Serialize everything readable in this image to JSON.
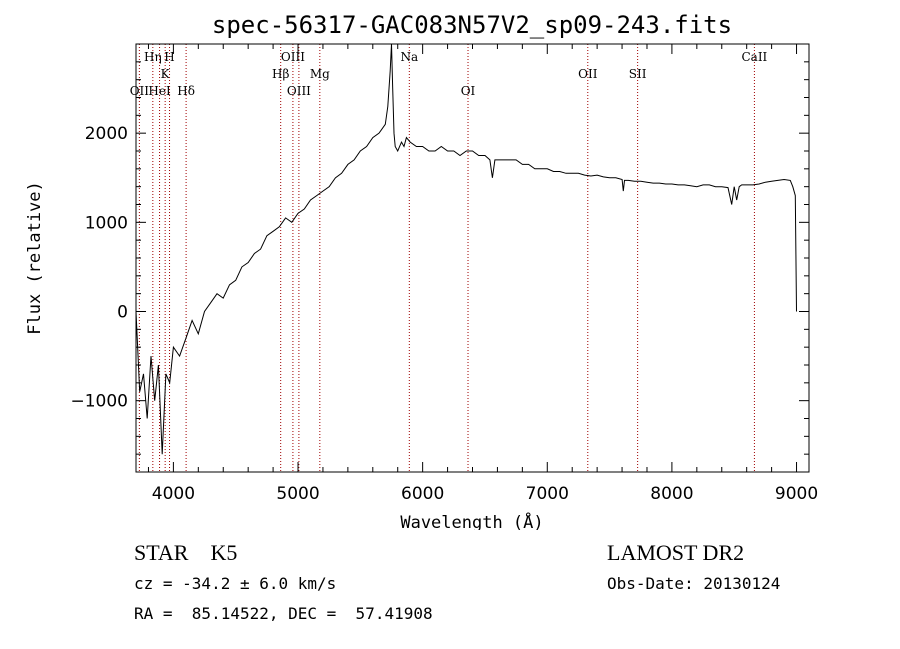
{
  "chart_data": {
    "type": "line",
    "title": "spec-56317-GAC083N57V2_sp09-243.fits",
    "xlabel": "Wavelength (Å)",
    "ylabel": "Flux (relative)",
    "xlim": [
      3700,
      9100
    ],
    "ylim": [
      -1800,
      3000
    ],
    "xticks": [
      4000,
      5000,
      6000,
      7000,
      8000,
      9000
    ],
    "yticks": [
      -1000,
      0,
      1000,
      2000
    ],
    "grid": false,
    "series": [
      {
        "x": [
          3700,
          3730,
          3760,
          3790,
          3820,
          3850,
          3880,
          3910,
          3940,
          3970,
          4000,
          4050,
          4100,
          4150,
          4200,
          4250,
          4300,
          4350,
          4400,
          4450,
          4500,
          4550,
          4600,
          4650,
          4700,
          4750,
          4800,
          4850,
          4900,
          4950,
          5000,
          5050,
          5100,
          5150,
          5200,
          5250,
          5300,
          5350,
          5400,
          5450,
          5500,
          5550,
          5600,
          5650,
          5700,
          5720,
          5740,
          5750,
          5760,
          5770,
          5780,
          5800,
          5830,
          5850,
          5870,
          5900,
          5950,
          6000,
          6050,
          6100,
          6150,
          6200,
          6250,
          6300,
          6350,
          6400,
          6450,
          6500,
          6540,
          6560,
          6580,
          6600,
          6650,
          6700,
          6750,
          6800,
          6850,
          6900,
          6950,
          7000,
          7050,
          7100,
          7150,
          7200,
          7250,
          7300,
          7350,
          7400,
          7450,
          7500,
          7550,
          7600,
          7610,
          7620,
          7650,
          7700,
          7750,
          7800,
          7850,
          7900,
          7950,
          8000,
          8050,
          8100,
          8150,
          8200,
          8250,
          8300,
          8350,
          8400,
          8450,
          8480,
          8500,
          8520,
          8540,
          8560,
          8600,
          8650,
          8700,
          8750,
          8800,
          8850,
          8900,
          8950,
          8970,
          8990,
          9000
        ],
        "y": [
          0,
          -900,
          -700,
          -1200,
          -500,
          -1000,
          -600,
          -1600,
          -700,
          -800,
          -400,
          -500,
          -300,
          -100,
          -250,
          0,
          100,
          200,
          150,
          300,
          350,
          500,
          550,
          650,
          700,
          850,
          900,
          950,
          1050,
          1000,
          1100,
          1150,
          1250,
          1300,
          1350,
          1400,
          1500,
          1550,
          1650,
          1700,
          1800,
          1850,
          1950,
          2000,
          2100,
          2300,
          2700,
          3000,
          2500,
          2000,
          1850,
          1800,
          1900,
          1850,
          1950,
          1900,
          1850,
          1850,
          1800,
          1800,
          1850,
          1800,
          1800,
          1750,
          1800,
          1800,
          1750,
          1750,
          1700,
          1500,
          1700,
          1700,
          1700,
          1700,
          1700,
          1650,
          1650,
          1600,
          1600,
          1600,
          1570,
          1570,
          1550,
          1550,
          1550,
          1530,
          1520,
          1530,
          1510,
          1500,
          1500,
          1480,
          1350,
          1470,
          1470,
          1460,
          1460,
          1450,
          1440,
          1440,
          1430,
          1430,
          1420,
          1420,
          1410,
          1400,
          1420,
          1420,
          1400,
          1400,
          1390,
          1200,
          1400,
          1250,
          1400,
          1420,
          1420,
          1420,
          1430,
          1450,
          1460,
          1470,
          1480,
          1470,
          1400,
          1300,
          0
        ]
      }
    ],
    "lines": [
      {
        "label": "OII",
        "x": 3727,
        "row": 3
      },
      {
        "label": "Hη",
        "x": 3835,
        "row": 1
      },
      {
        "label": "HeI",
        "x": 3889,
        "row": 3
      },
      {
        "label": "K",
        "x": 3934,
        "row": 2
      },
      {
        "label": "H",
        "x": 3969,
        "row": 1
      },
      {
        "label": "Hδ",
        "x": 4102,
        "row": 3
      },
      {
        "label": "Hβ",
        "x": 4861,
        "row": 2
      },
      {
        "label": "OIII",
        "x": 4959,
        "row": 1
      },
      {
        "label": "OIII",
        "x": 5007,
        "row": 3
      },
      {
        "label": "Mg",
        "x": 5175,
        "row": 2
      },
      {
        "label": "Na",
        "x": 5893,
        "row": 1
      },
      {
        "label": "OI",
        "x": 6364,
        "row": 3
      },
      {
        "label": "OII",
        "x": 7325,
        "row": 2
      },
      {
        "label": "SII",
        "x": 7725,
        "row": 2
      },
      {
        "label": "CaII",
        "x": 8662,
        "row": 1
      }
    ]
  },
  "info": {
    "object": "STAR    K5",
    "survey": "LAMOST DR2",
    "cz": "cz = -34.2 ± 6.0 km/s",
    "obs_date": "Obs-Date: 20130124",
    "coords": "RA =  85.14522, DEC =  57.41908"
  }
}
